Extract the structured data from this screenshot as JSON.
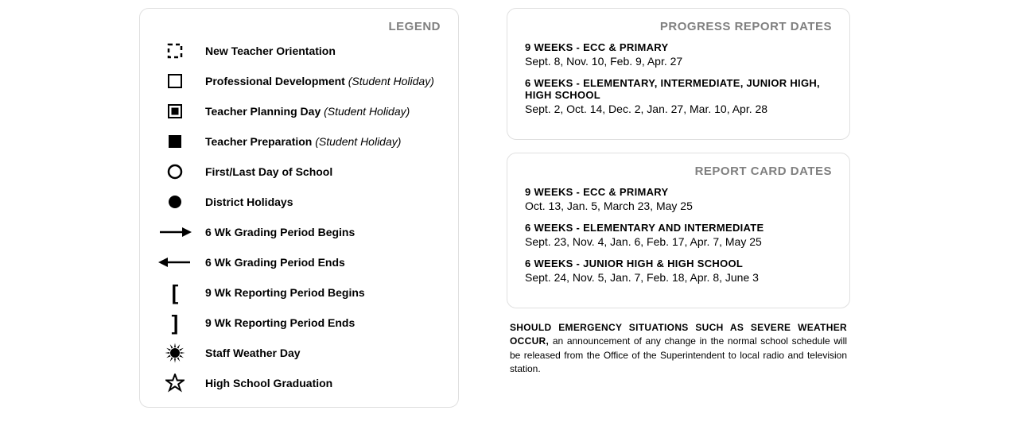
{
  "legend": {
    "title": "LEGEND",
    "items": [
      {
        "icon": "dashed-square",
        "label": "New Teacher Orientation",
        "suffix": ""
      },
      {
        "icon": "outline-square",
        "label": "Professional Development",
        "suffix": "(Student Holiday)"
      },
      {
        "icon": "nested-square",
        "label": "Teacher Planning Day",
        "suffix": "(Student Holiday)"
      },
      {
        "icon": "filled-square",
        "label": "Teacher Preparation",
        "suffix": "(Student Holiday)"
      },
      {
        "icon": "outline-circle",
        "label": "First/Last Day of School",
        "suffix": ""
      },
      {
        "icon": "filled-circle",
        "label": "District Holidays",
        "suffix": ""
      },
      {
        "icon": "arrow-right",
        "label": "6 Wk Grading Period Begins",
        "suffix": ""
      },
      {
        "icon": "arrow-left",
        "label": "6 Wk Grading Period Ends",
        "suffix": ""
      },
      {
        "icon": "bracket-open",
        "label": "9 Wk Reporting Period Begins",
        "suffix": ""
      },
      {
        "icon": "bracket-close",
        "label": "9 Wk Reporting Period Ends",
        "suffix": ""
      },
      {
        "icon": "sun",
        "label": "Staff Weather Day",
        "suffix": ""
      },
      {
        "icon": "star",
        "label": "High School Graduation",
        "suffix": ""
      }
    ]
  },
  "progress": {
    "title": "PROGRESS REPORT DATES",
    "sections": [
      {
        "title": "9 WEEKS - ECC & PRIMARY",
        "body": "Sept. 8, Nov. 10, Feb. 9, Apr. 27"
      },
      {
        "title": "6 WEEKS - ELEMENTARY, INTERMEDIATE, JUNIOR HIGH, HIGH SCHOOL",
        "body": "Sept. 2, Oct. 14, Dec. 2, Jan. 27, Mar. 10, Apr. 28"
      }
    ]
  },
  "reportcard": {
    "title": "REPORT CARD DATES",
    "sections": [
      {
        "title": "9 WEEKS - ECC & PRIMARY",
        "body": "Oct. 13, Jan. 5, March 23, May 25"
      },
      {
        "title": "6 WEEKS - ELEMENTARY AND INTERMEDIATE",
        "body": "Sept. 23, Nov. 4, Jan. 6, Feb. 17, Apr. 7, May 25"
      },
      {
        "title": "6 WEEKS - JUNIOR HIGH & HIGH SCHOOL",
        "body": "Sept. 24, Nov. 5, Jan. 7, Feb. 18, Apr. 8, June 3"
      }
    ]
  },
  "emergency": {
    "lead": "SHOULD EMERGENCY SITUATIONS SUCH AS SEVERE WEATHER OCCUR,",
    "body": "an announcement of any change in the normal school schedule will be released from the Office of the Superintendent to local radio and television station."
  },
  "style": {
    "border_color": "#e0e0e0",
    "title_color": "#808080",
    "text_color": "#000000",
    "background": "#ffffff"
  }
}
